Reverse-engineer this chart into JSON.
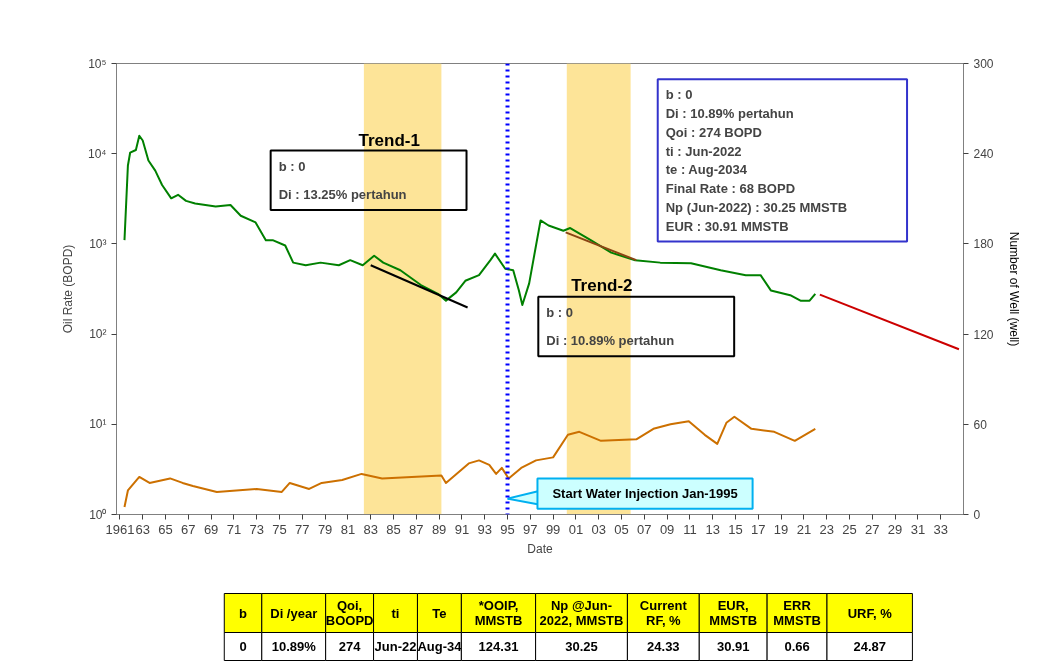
{
  "chart_data": {
    "type": "line",
    "xlabel": "Date",
    "ylabel": "Oil Rate (BOPD)",
    "y2label": "Number of Well (well)",
    "log": "y",
    "grid": false,
    "marker": "none",
    "line_style": "solid",
    "xlim": [
      1960.7,
      2035.0
    ],
    "ylim": [
      1,
      100000
    ],
    "y2lim": [
      0,
      300
    ],
    "xticks": [
      {
        "value": 1961,
        "label": "1961"
      },
      {
        "value": 1963,
        "label": "63"
      },
      {
        "value": 1965,
        "label": "65"
      },
      {
        "value": 1967,
        "label": "67"
      },
      {
        "value": 1969,
        "label": "69"
      },
      {
        "value": 1971,
        "label": "71"
      },
      {
        "value": 1973,
        "label": "73"
      },
      {
        "value": 1975,
        "label": "75"
      },
      {
        "value": 1977,
        "label": "77"
      },
      {
        "value": 1979,
        "label": "79"
      },
      {
        "value": 1981,
        "label": "81"
      },
      {
        "value": 1983,
        "label": "83"
      },
      {
        "value": 1985,
        "label": "85"
      },
      {
        "value": 1987,
        "label": "87"
      },
      {
        "value": 1989,
        "label": "89"
      },
      {
        "value": 1991,
        "label": "91"
      },
      {
        "value": 1993,
        "label": "93"
      },
      {
        "value": 1995,
        "label": "95"
      },
      {
        "value": 1997,
        "label": "97"
      },
      {
        "value": 1999,
        "label": "99"
      },
      {
        "value": 2001,
        "label": "01"
      },
      {
        "value": 2003,
        "label": "03"
      },
      {
        "value": 2005,
        "label": "05"
      },
      {
        "value": 2007,
        "label": "07"
      },
      {
        "value": 2009,
        "label": "09"
      },
      {
        "value": 2011,
        "label": "11"
      },
      {
        "value": 2013,
        "label": "13"
      },
      {
        "value": 2015,
        "label": "15"
      },
      {
        "value": 2017,
        "label": "17"
      },
      {
        "value": 2019,
        "label": "19"
      },
      {
        "value": 2021,
        "label": "21"
      },
      {
        "value": 2023,
        "label": "23"
      },
      {
        "value": 2025,
        "label": "25"
      },
      {
        "value": 2027,
        "label": "27"
      },
      {
        "value": 2029,
        "label": "29"
      },
      {
        "value": 2031,
        "label": "31"
      },
      {
        "value": 2033,
        "label": "33"
      }
    ],
    "yticks": [
      {
        "value": 1,
        "label": "10⁰"
      },
      {
        "value": 10,
        "label": "10¹"
      },
      {
        "value": 100,
        "label": "10²"
      },
      {
        "value": 1000,
        "label": "10³"
      },
      {
        "value": 10000,
        "label": "10⁴"
      },
      {
        "value": 100000,
        "label": "10⁵"
      }
    ],
    "y2ticks": [
      0,
      60,
      120,
      180,
      240,
      300
    ],
    "bands": [
      {
        "axis": "x",
        "from": 1982.4,
        "to": 1989.2,
        "color": "#fde498"
      },
      {
        "axis": "x",
        "from": 2000.2,
        "to": 2005.8,
        "color": "#fde498"
      }
    ],
    "ref_lines": [
      {
        "axis": "x",
        "value": 1995,
        "label": "Start Water Injection Jan-1995",
        "color": "#0000ff",
        "line_style": "dotted"
      }
    ],
    "series": [
      {
        "color": "#008000",
        "x": [
          1961.4,
          1961.7,
          1961.9,
          1962.4,
          1962.7,
          1963.0,
          1963.5,
          1964.1,
          1964.7,
          1965.5,
          1966.1,
          1966.8,
          1967.6,
          1968.5,
          1969.4,
          1970.7,
          1971.6,
          1972.9,
          1973.8,
          1974.4,
          1975.5,
          1976.2,
          1977.3,
          1978.6,
          1980.2,
          1981.2,
          1982.3,
          1983.3,
          1984.1,
          1985.6,
          1987.4,
          1988.9,
          1989.6,
          1990.5,
          1991.3,
          1992.5,
          1993.5,
          1993.9,
          1994.8,
          1995.5,
          1996.0,
          1996.3,
          1996.9,
          1997.5,
          1997.9,
          1998.6,
          1999.9,
          2000.5,
          2002.3,
          2004.1,
          2006.2,
          2008.4,
          2011.1,
          2013.7,
          2015.9,
          2017.2,
          2018.1,
          2019.8,
          2020.7,
          2021.5,
          2022.0
        ],
        "values": [
          1100,
          7400,
          10300,
          11000,
          15800,
          14000,
          8400,
          6500,
          4500,
          3200,
          3500,
          3000,
          2800,
          2700,
          2600,
          2700,
          2050,
          1730,
          1100,
          1100,
          960,
          620,
          580,
          620,
          580,
          660,
          580,
          740,
          620,
          510,
          350,
          280,
          235,
          290,
          390,
          450,
          660,
          780,
          530,
          510,
          305,
          210,
          365,
          960,
          1820,
          1600,
          1400,
          1500,
          1100,
          800,
          660,
          620,
          610,
          510,
          450,
          450,
          305,
          270,
          235,
          235,
          280
        ]
      },
      {
        "color": "#000000",
        "x": [
          1983.0,
          1991.5
        ],
        "values": [
          580,
          197
        ]
      },
      {
        "color": "#8b4513",
        "x": [
          2000.1,
          2006.3
        ],
        "values": [
          1340,
          660
        ]
      },
      {
        "color": "#cc0000",
        "x": [
          2022.4,
          2034.6
        ],
        "values": [
          274,
          68
        ]
      },
      {
        "color": "#cc7000",
        "axis": "y2",
        "x": [
          1961.4,
          1961.7,
          1962.7,
          1963.6,
          1965.4,
          1966.5,
          1967.4,
          1969.5,
          1971.2,
          1973.0,
          1975.2,
          1975.9,
          1977.6,
          1978.7,
          1980.5,
          1982.2,
          1984.0,
          1989.2,
          1989.6,
          1991.6,
          1992.5,
          1993.4,
          1994.0,
          1994.5,
          1995.1,
          1996.2,
          1997.5,
          1999.0,
          2000.3,
          2001.3,
          2003.2,
          2006.3,
          2007.8,
          2009.3,
          2010.9,
          2012.3,
          2013.4,
          2014.2,
          2014.9,
          2016.4,
          2018.4,
          2020.2,
          2022.0
        ],
        "values": [
          5,
          16,
          25,
          21,
          24,
          21,
          19,
          15,
          16,
          17,
          15,
          21,
          17,
          21,
          23,
          27,
          24,
          26,
          21,
          34,
          36,
          33,
          27,
          31,
          24,
          31,
          36,
          38,
          53,
          55,
          49,
          50,
          57,
          60,
          62,
          53,
          47,
          61,
          65,
          57,
          55,
          49,
          57
        ]
      }
    ],
    "annotations": [
      "Trend-1",
      "b : 0",
      "Di : 13.25% pertahun",
      "Trend-2",
      "b : 0",
      "Di : 10.89% pertahun",
      "b : 0",
      "Di : 10.89% pertahun",
      "Qoi : 274 BOPD",
      "ti : Jun-2022",
      "te : Aug-2034",
      "Final Rate : 68 BOPD",
      "Np (Jun-2022) : 30.25 MMSTB",
      "EUR : 30.91 MMSTB",
      "b",
      "Di /year",
      "Qoi,\nBOOPD",
      "ti",
      "Te",
      "*OOIP,\nMMSTB",
      "Np @Jun-\n2022, MMSTB",
      "Current\nRF, %",
      "EUR,\nMMSTB",
      "ERR\nMMSTB",
      "URF, %",
      "0",
      "10.89%",
      "274",
      "Jun-22",
      "Aug-34",
      "124.31",
      "30.25",
      "24.33",
      "30.91",
      "0.66",
      "24.87"
    ]
  }
}
